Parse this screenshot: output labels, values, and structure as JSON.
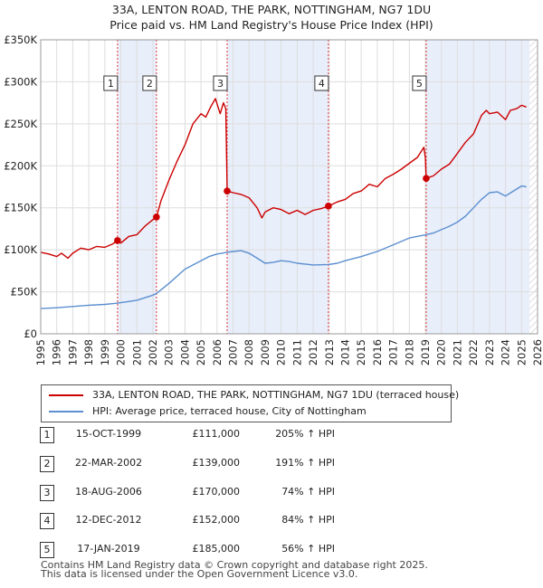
{
  "title_line1": "33A, LENTON ROAD, THE PARK, NOTTINGHAM, NG7 1DU",
  "title_line2": "Price paid vs. HM Land Registry's House Price Index (HPI)",
  "legend": {
    "property_label": "33A, LENTON ROAD, THE PARK, NOTTINGHAM, NG7 1DU (terraced house)",
    "hpi_label": "HPI: Average price, terraced house, City of Nottingham",
    "property_color": "#cc0000",
    "hpi_color": "#5b8fd0"
  },
  "sales": [
    {
      "num": "1",
      "date": "15-OCT-1999",
      "price": "£111,000",
      "hpi": "205% ↑ HPI"
    },
    {
      "num": "2",
      "date": "22-MAR-2002",
      "price": "£139,000",
      "hpi": "191% ↑ HPI"
    },
    {
      "num": "3",
      "date": "18-AUG-2006",
      "price": "£170,000",
      "hpi": "74% ↑ HPI"
    },
    {
      "num": "4",
      "date": "12-DEC-2012",
      "price": "£152,000",
      "hpi": "84% ↑ HPI"
    },
    {
      "num": "5",
      "date": "17-JAN-2019",
      "price": "£185,000",
      "hpi": "56% ↑ HPI"
    }
  ],
  "footer_line1": "Contains HM Land Registry data © Crown copyright and database right 2025.",
  "footer_line2": "This data is licensed under the Open Government Licence v3.0.",
  "chart_data": {
    "type": "line",
    "title": "33A, LENTON ROAD, THE PARK, NOTTINGHAM, NG7 1DU — Price paid vs. HM Land Registry's House Price Index (HPI)",
    "xlim": [
      1995,
      2026
    ],
    "ylim": [
      0,
      350000
    ],
    "x_ticks": [
      1995,
      1996,
      1997,
      1998,
      1999,
      2000,
      2001,
      2002,
      2003,
      2004,
      2005,
      2006,
      2007,
      2008,
      2009,
      2010,
      2011,
      2012,
      2013,
      2014,
      2015,
      2016,
      2017,
      2018,
      2019,
      2020,
      2021,
      2022,
      2023,
      2024,
      2025,
      2026
    ],
    "y_ticks": [
      {
        "value": 0,
        "label": "£0"
      },
      {
        "value": 50000,
        "label": "£50K"
      },
      {
        "value": 100000,
        "label": "£100K"
      },
      {
        "value": 150000,
        "label": "£150K"
      },
      {
        "value": 200000,
        "label": "£200K"
      },
      {
        "value": 250000,
        "label": "£250K"
      },
      {
        "value": 300000,
        "label": "£300K"
      },
      {
        "value": 350000,
        "label": "£350K"
      }
    ],
    "grid": true,
    "shaded_ranges": [
      [
        1999.79,
        2002.22
      ],
      [
        2006.63,
        2012.95
      ],
      [
        2019.05,
        2025.5
      ]
    ],
    "future_hatch_from": 2025.5,
    "sale_markers": [
      {
        "label": "1",
        "x": 1999.79,
        "y": 111000
      },
      {
        "label": "2",
        "x": 2002.22,
        "y": 139000
      },
      {
        "label": "3",
        "x": 2006.63,
        "y": 170000
      },
      {
        "label": "4",
        "x": 2012.95,
        "y": 152000
      },
      {
        "label": "5",
        "x": 2019.05,
        "y": 185000
      }
    ],
    "series": [
      {
        "name": "33A, LENTON ROAD, THE PARK, NOTTINGHAM, NG7 1DU (terraced house)",
        "color": "#cc0000",
        "points": [
          [
            1995.0,
            97000
          ],
          [
            1995.5,
            95000
          ],
          [
            1996.0,
            92000
          ],
          [
            1996.3,
            96000
          ],
          [
            1996.7,
            90000
          ],
          [
            1997.0,
            96000
          ],
          [
            1997.5,
            102000
          ],
          [
            1998.0,
            100000
          ],
          [
            1998.5,
            104000
          ],
          [
            1999.0,
            103000
          ],
          [
            1999.5,
            107000
          ],
          [
            1999.79,
            111000
          ],
          [
            2000.0,
            108000
          ],
          [
            2000.5,
            116000
          ],
          [
            2001.0,
            118000
          ],
          [
            2001.5,
            128000
          ],
          [
            2002.0,
            136000
          ],
          [
            2002.22,
            139000
          ],
          [
            2002.5,
            158000
          ],
          [
            2003.0,
            183000
          ],
          [
            2003.5,
            205000
          ],
          [
            2004.0,
            225000
          ],
          [
            2004.5,
            250000
          ],
          [
            2005.0,
            262000
          ],
          [
            2005.3,
            258000
          ],
          [
            2005.6,
            270000
          ],
          [
            2005.9,
            280000
          ],
          [
            2006.2,
            262000
          ],
          [
            2006.4,
            275000
          ],
          [
            2006.55,
            268000
          ],
          [
            2006.63,
            170000
          ],
          [
            2007.0,
            168000
          ],
          [
            2007.5,
            166000
          ],
          [
            2008.0,
            162000
          ],
          [
            2008.5,
            150000
          ],
          [
            2008.8,
            138000
          ],
          [
            2009.0,
            145000
          ],
          [
            2009.5,
            150000
          ],
          [
            2010.0,
            148000
          ],
          [
            2010.5,
            143000
          ],
          [
            2011.0,
            147000
          ],
          [
            2011.5,
            142000
          ],
          [
            2012.0,
            147000
          ],
          [
            2012.5,
            149000
          ],
          [
            2012.95,
            152000
          ],
          [
            2013.5,
            157000
          ],
          [
            2014.0,
            160000
          ],
          [
            2014.5,
            167000
          ],
          [
            2015.0,
            170000
          ],
          [
            2015.5,
            178000
          ],
          [
            2016.0,
            175000
          ],
          [
            2016.5,
            185000
          ],
          [
            2017.0,
            190000
          ],
          [
            2017.5,
            196000
          ],
          [
            2018.0,
            203000
          ],
          [
            2018.5,
            210000
          ],
          [
            2018.9,
            222000
          ],
          [
            2019.0,
            210000
          ],
          [
            2019.05,
            185000
          ],
          [
            2019.5,
            188000
          ],
          [
            2020.0,
            196000
          ],
          [
            2020.5,
            202000
          ],
          [
            2021.0,
            215000
          ],
          [
            2021.5,
            228000
          ],
          [
            2022.0,
            238000
          ],
          [
            2022.5,
            260000
          ],
          [
            2022.8,
            266000
          ],
          [
            2023.0,
            262000
          ],
          [
            2023.5,
            264000
          ],
          [
            2024.0,
            255000
          ],
          [
            2024.3,
            266000
          ],
          [
            2024.7,
            268000
          ],
          [
            2025.0,
            272000
          ],
          [
            2025.3,
            270000
          ]
        ]
      },
      {
        "name": "HPI: Average price, terraced house, City of Nottingham",
        "color": "#5b8fd0",
        "points": [
          [
            1995.0,
            30000
          ],
          [
            1996.0,
            31000
          ],
          [
            1997.0,
            32500
          ],
          [
            1998.0,
            34000
          ],
          [
            1999.0,
            35000
          ],
          [
            1999.79,
            36500
          ],
          [
            2000.0,
            37000
          ],
          [
            2001.0,
            40000
          ],
          [
            2002.0,
            46000
          ],
          [
            2002.22,
            48000
          ],
          [
            2003.0,
            60000
          ],
          [
            2004.0,
            77000
          ],
          [
            2005.0,
            87000
          ],
          [
            2005.5,
            92000
          ],
          [
            2006.0,
            95000
          ],
          [
            2006.63,
            97000
          ],
          [
            2007.0,
            98000
          ],
          [
            2007.5,
            99000
          ],
          [
            2008.0,
            96000
          ],
          [
            2008.5,
            90000
          ],
          [
            2009.0,
            84000
          ],
          [
            2009.5,
            85000
          ],
          [
            2010.0,
            87000
          ],
          [
            2010.5,
            86000
          ],
          [
            2011.0,
            84000
          ],
          [
            2011.5,
            83000
          ],
          [
            2012.0,
            82000
          ],
          [
            2012.95,
            82500
          ],
          [
            2013.5,
            84000
          ],
          [
            2014.0,
            87000
          ],
          [
            2015.0,
            92000
          ],
          [
            2016.0,
            98000
          ],
          [
            2017.0,
            106000
          ],
          [
            2018.0,
            114000
          ],
          [
            2019.05,
            118000
          ],
          [
            2019.5,
            120000
          ],
          [
            2020.0,
            124000
          ],
          [
            2020.5,
            128000
          ],
          [
            2021.0,
            133000
          ],
          [
            2021.5,
            140000
          ],
          [
            2022.0,
            150000
          ],
          [
            2022.5,
            160000
          ],
          [
            2023.0,
            168000
          ],
          [
            2023.5,
            169000
          ],
          [
            2024.0,
            164000
          ],
          [
            2024.5,
            170000
          ],
          [
            2025.0,
            176000
          ],
          [
            2025.3,
            175000
          ]
        ]
      }
    ]
  }
}
